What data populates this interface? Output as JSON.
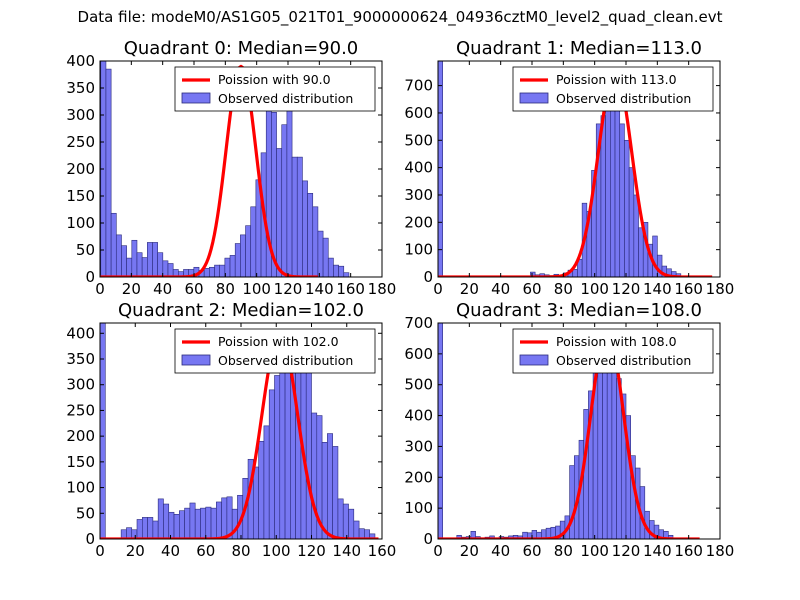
{
  "figure_title": "Data file: modeM0/AS1G05_021T01_9000000624_04936cztM0_level2_quad_clean.evt",
  "colors": {
    "hist_fill": "#7777f2",
    "hist_edge": "#2a2a7a",
    "poisson_line": "#ff0000"
  },
  "chart_data": [
    {
      "type": "bar",
      "title": "Quadrant 0: Median=90.0",
      "xlim": [
        0,
        180
      ],
      "ylim": [
        0,
        400
      ],
      "xticks": [
        0,
        20,
        40,
        60,
        80,
        100,
        120,
        140,
        160,
        180
      ],
      "yticks": [
        0,
        50,
        100,
        150,
        200,
        250,
        300,
        350,
        400
      ],
      "legend": {
        "line_label": "Poission with 90.0",
        "bar_label": "Observed distribution",
        "position": "top-right"
      },
      "bin_width": 3.3,
      "bins": [
        [
          0.5,
          400
        ],
        [
          3.8,
          385
        ],
        [
          7.1,
          118
        ],
        [
          10.4,
          78
        ],
        [
          13.7,
          58
        ],
        [
          17,
          35
        ],
        [
          20.3,
          68
        ],
        [
          23.6,
          45
        ],
        [
          26.9,
          36
        ],
        [
          30.2,
          64
        ],
        [
          33.5,
          64
        ],
        [
          36.8,
          45
        ],
        [
          40.1,
          30
        ],
        [
          43.4,
          25
        ],
        [
          46.7,
          14
        ],
        [
          50,
          10
        ],
        [
          53.3,
          14
        ],
        [
          56.6,
          14
        ],
        [
          59.9,
          18
        ],
        [
          63.2,
          12
        ],
        [
          66.5,
          16
        ],
        [
          69.8,
          18
        ],
        [
          73.1,
          22
        ],
        [
          76.4,
          22
        ],
        [
          79.7,
          35
        ],
        [
          83,
          40
        ],
        [
          86.3,
          62
        ],
        [
          89.6,
          78
        ],
        [
          92.9,
          95
        ],
        [
          96.2,
          130
        ],
        [
          99.5,
          180
        ],
        [
          102.8,
          230
        ],
        [
          106.1,
          335
        ],
        [
          109.4,
          305
        ],
        [
          112.7,
          238
        ],
        [
          116,
          282
        ],
        [
          119.3,
          312
        ],
        [
          122.6,
          222
        ],
        [
          125.9,
          222
        ],
        [
          129.2,
          178
        ],
        [
          132.5,
          155
        ],
        [
          135.8,
          130
        ],
        [
          139.1,
          85
        ],
        [
          142.4,
          72
        ],
        [
          145.7,
          35
        ],
        [
          149,
          22
        ],
        [
          152.3,
          20
        ],
        [
          155.6,
          8
        ]
      ],
      "poisson_mean": 90.0,
      "poisson_peak": 390
    },
    {
      "type": "bar",
      "title": "Quadrant 1: Median=113.0",
      "xlim": [
        0,
        180
      ],
      "ylim": [
        0,
        790
      ],
      "xticks": [
        0,
        20,
        40,
        60,
        80,
        100,
        120,
        140,
        160,
        180
      ],
      "yticks": [
        0,
        100,
        200,
        300,
        400,
        500,
        600,
        700
      ],
      "legend": {
        "line_label": "Poission with 113.0",
        "bar_label": "Observed distribution",
        "position": "top-right"
      },
      "bin_width": 3.0,
      "bins": [
        [
          0,
          790
        ],
        [
          59,
          18
        ],
        [
          62,
          8
        ],
        [
          65,
          12
        ],
        [
          68,
          8
        ],
        [
          71,
          5
        ],
        [
          74,
          10
        ],
        [
          77,
          6
        ],
        [
          80,
          15
        ],
        [
          83,
          25
        ],
        [
          86,
          28
        ],
        [
          89,
          65
        ],
        [
          92,
          270
        ],
        [
          95,
          240
        ],
        [
          98,
          390
        ],
        [
          101,
          560
        ],
        [
          104,
          590
        ],
        [
          107,
          760
        ],
        [
          110,
          690
        ],
        [
          113,
          690
        ],
        [
          116,
          560
        ],
        [
          119,
          500
        ],
        [
          122,
          400
        ],
        [
          125,
          300
        ],
        [
          128,
          180
        ],
        [
          131,
          200
        ],
        [
          134,
          120
        ],
        [
          137,
          150
        ],
        [
          140,
          80
        ],
        [
          143,
          40
        ],
        [
          146,
          30
        ],
        [
          149,
          20
        ],
        [
          152,
          12
        ]
      ],
      "poisson_mean": 113.0,
      "poisson_peak": 755
    },
    {
      "type": "bar",
      "title": "Quadrant 2: Median=102.0",
      "xlim": [
        0,
        160
      ],
      "ylim": [
        0,
        420
      ],
      "xticks": [
        0,
        20,
        40,
        60,
        80,
        100,
        120,
        140,
        160
      ],
      "yticks": [
        0,
        50,
        100,
        150,
        200,
        250,
        300,
        350,
        400
      ],
      "legend": {
        "line_label": "Poission with 102.0",
        "bar_label": "Observed distribution",
        "position": "top-right"
      },
      "bin_width": 3.0,
      "bins": [
        [
          0,
          420
        ],
        [
          12,
          18
        ],
        [
          15,
          22
        ],
        [
          18,
          18
        ],
        [
          21,
          38
        ],
        [
          24,
          42
        ],
        [
          27,
          42
        ],
        [
          30,
          35
        ],
        [
          33,
          78
        ],
        [
          36,
          68
        ],
        [
          39,
          52
        ],
        [
          42,
          48
        ],
        [
          45,
          55
        ],
        [
          48,
          60
        ],
        [
          51,
          70
        ],
        [
          54,
          58
        ],
        [
          57,
          60
        ],
        [
          60,
          62
        ],
        [
          63,
          60
        ],
        [
          66,
          72
        ],
        [
          69,
          80
        ],
        [
          72,
          82
        ],
        [
          75,
          58
        ],
        [
          78,
          85
        ],
        [
          81,
          118
        ],
        [
          84,
          155
        ],
        [
          87,
          140
        ],
        [
          90,
          190
        ],
        [
          93,
          220
        ],
        [
          96,
          290
        ],
        [
          99,
          318
        ],
        [
          102,
          348
        ],
        [
          105,
          380
        ],
        [
          108,
          398
        ],
        [
          111,
          330
        ],
        [
          114,
          325
        ],
        [
          117,
          345
        ],
        [
          120,
          245
        ],
        [
          123,
          240
        ],
        [
          126,
          188
        ],
        [
          129,
          205
        ],
        [
          132,
          180
        ],
        [
          135,
          78
        ],
        [
          138,
          68
        ],
        [
          141,
          58
        ],
        [
          144,
          35
        ],
        [
          147,
          20
        ],
        [
          150,
          18
        ],
        [
          153,
          10
        ]
      ],
      "poisson_mean": 102.0,
      "poisson_peak": 400
    },
    {
      "type": "bar",
      "title": "Quadrant 3: Median=108.0",
      "xlim": [
        0,
        180
      ],
      "ylim": [
        0,
        700
      ],
      "xticks": [
        0,
        20,
        40,
        60,
        80,
        100,
        120,
        140,
        160,
        180
      ],
      "yticks": [
        0,
        100,
        200,
        300,
        400,
        500,
        600,
        700
      ],
      "legend": {
        "line_label": "Poission with 108.0",
        "bar_label": "Observed distribution",
        "position": "top-right"
      },
      "bin_width": 3.0,
      "bins": [
        [
          0,
          700
        ],
        [
          12,
          12
        ],
        [
          15,
          6
        ],
        [
          18,
          8
        ],
        [
          21,
          25
        ],
        [
          24,
          8
        ],
        [
          27,
          4
        ],
        [
          30,
          6
        ],
        [
          33,
          10
        ],
        [
          36,
          4
        ],
        [
          39,
          8
        ],
        [
          42,
          6
        ],
        [
          45,
          10
        ],
        [
          48,
          12
        ],
        [
          51,
          10
        ],
        [
          54,
          22
        ],
        [
          57,
          20
        ],
        [
          60,
          28
        ],
        [
          63,
          22
        ],
        [
          66,
          30
        ],
        [
          69,
          35
        ],
        [
          72,
          38
        ],
        [
          75,
          42
        ],
        [
          78,
          58
        ],
        [
          81,
          75
        ],
        [
          84,
          238
        ],
        [
          87,
          270
        ],
        [
          90,
          320
        ],
        [
          93,
          420
        ],
        [
          96,
          480
        ],
        [
          99,
          580
        ],
        [
          102,
          640
        ],
        [
          105,
          670
        ],
        [
          108,
          620
        ],
        [
          111,
          600
        ],
        [
          114,
          520
        ],
        [
          117,
          470
        ],
        [
          120,
          400
        ],
        [
          123,
          270
        ],
        [
          126,
          230
        ],
        [
          129,
          170
        ],
        [
          132,
          90
        ],
        [
          135,
          60
        ],
        [
          138,
          45
        ],
        [
          141,
          30
        ],
        [
          144,
          25
        ],
        [
          147,
          12
        ]
      ],
      "poisson_mean": 108.0,
      "poisson_peak": 672
    }
  ]
}
